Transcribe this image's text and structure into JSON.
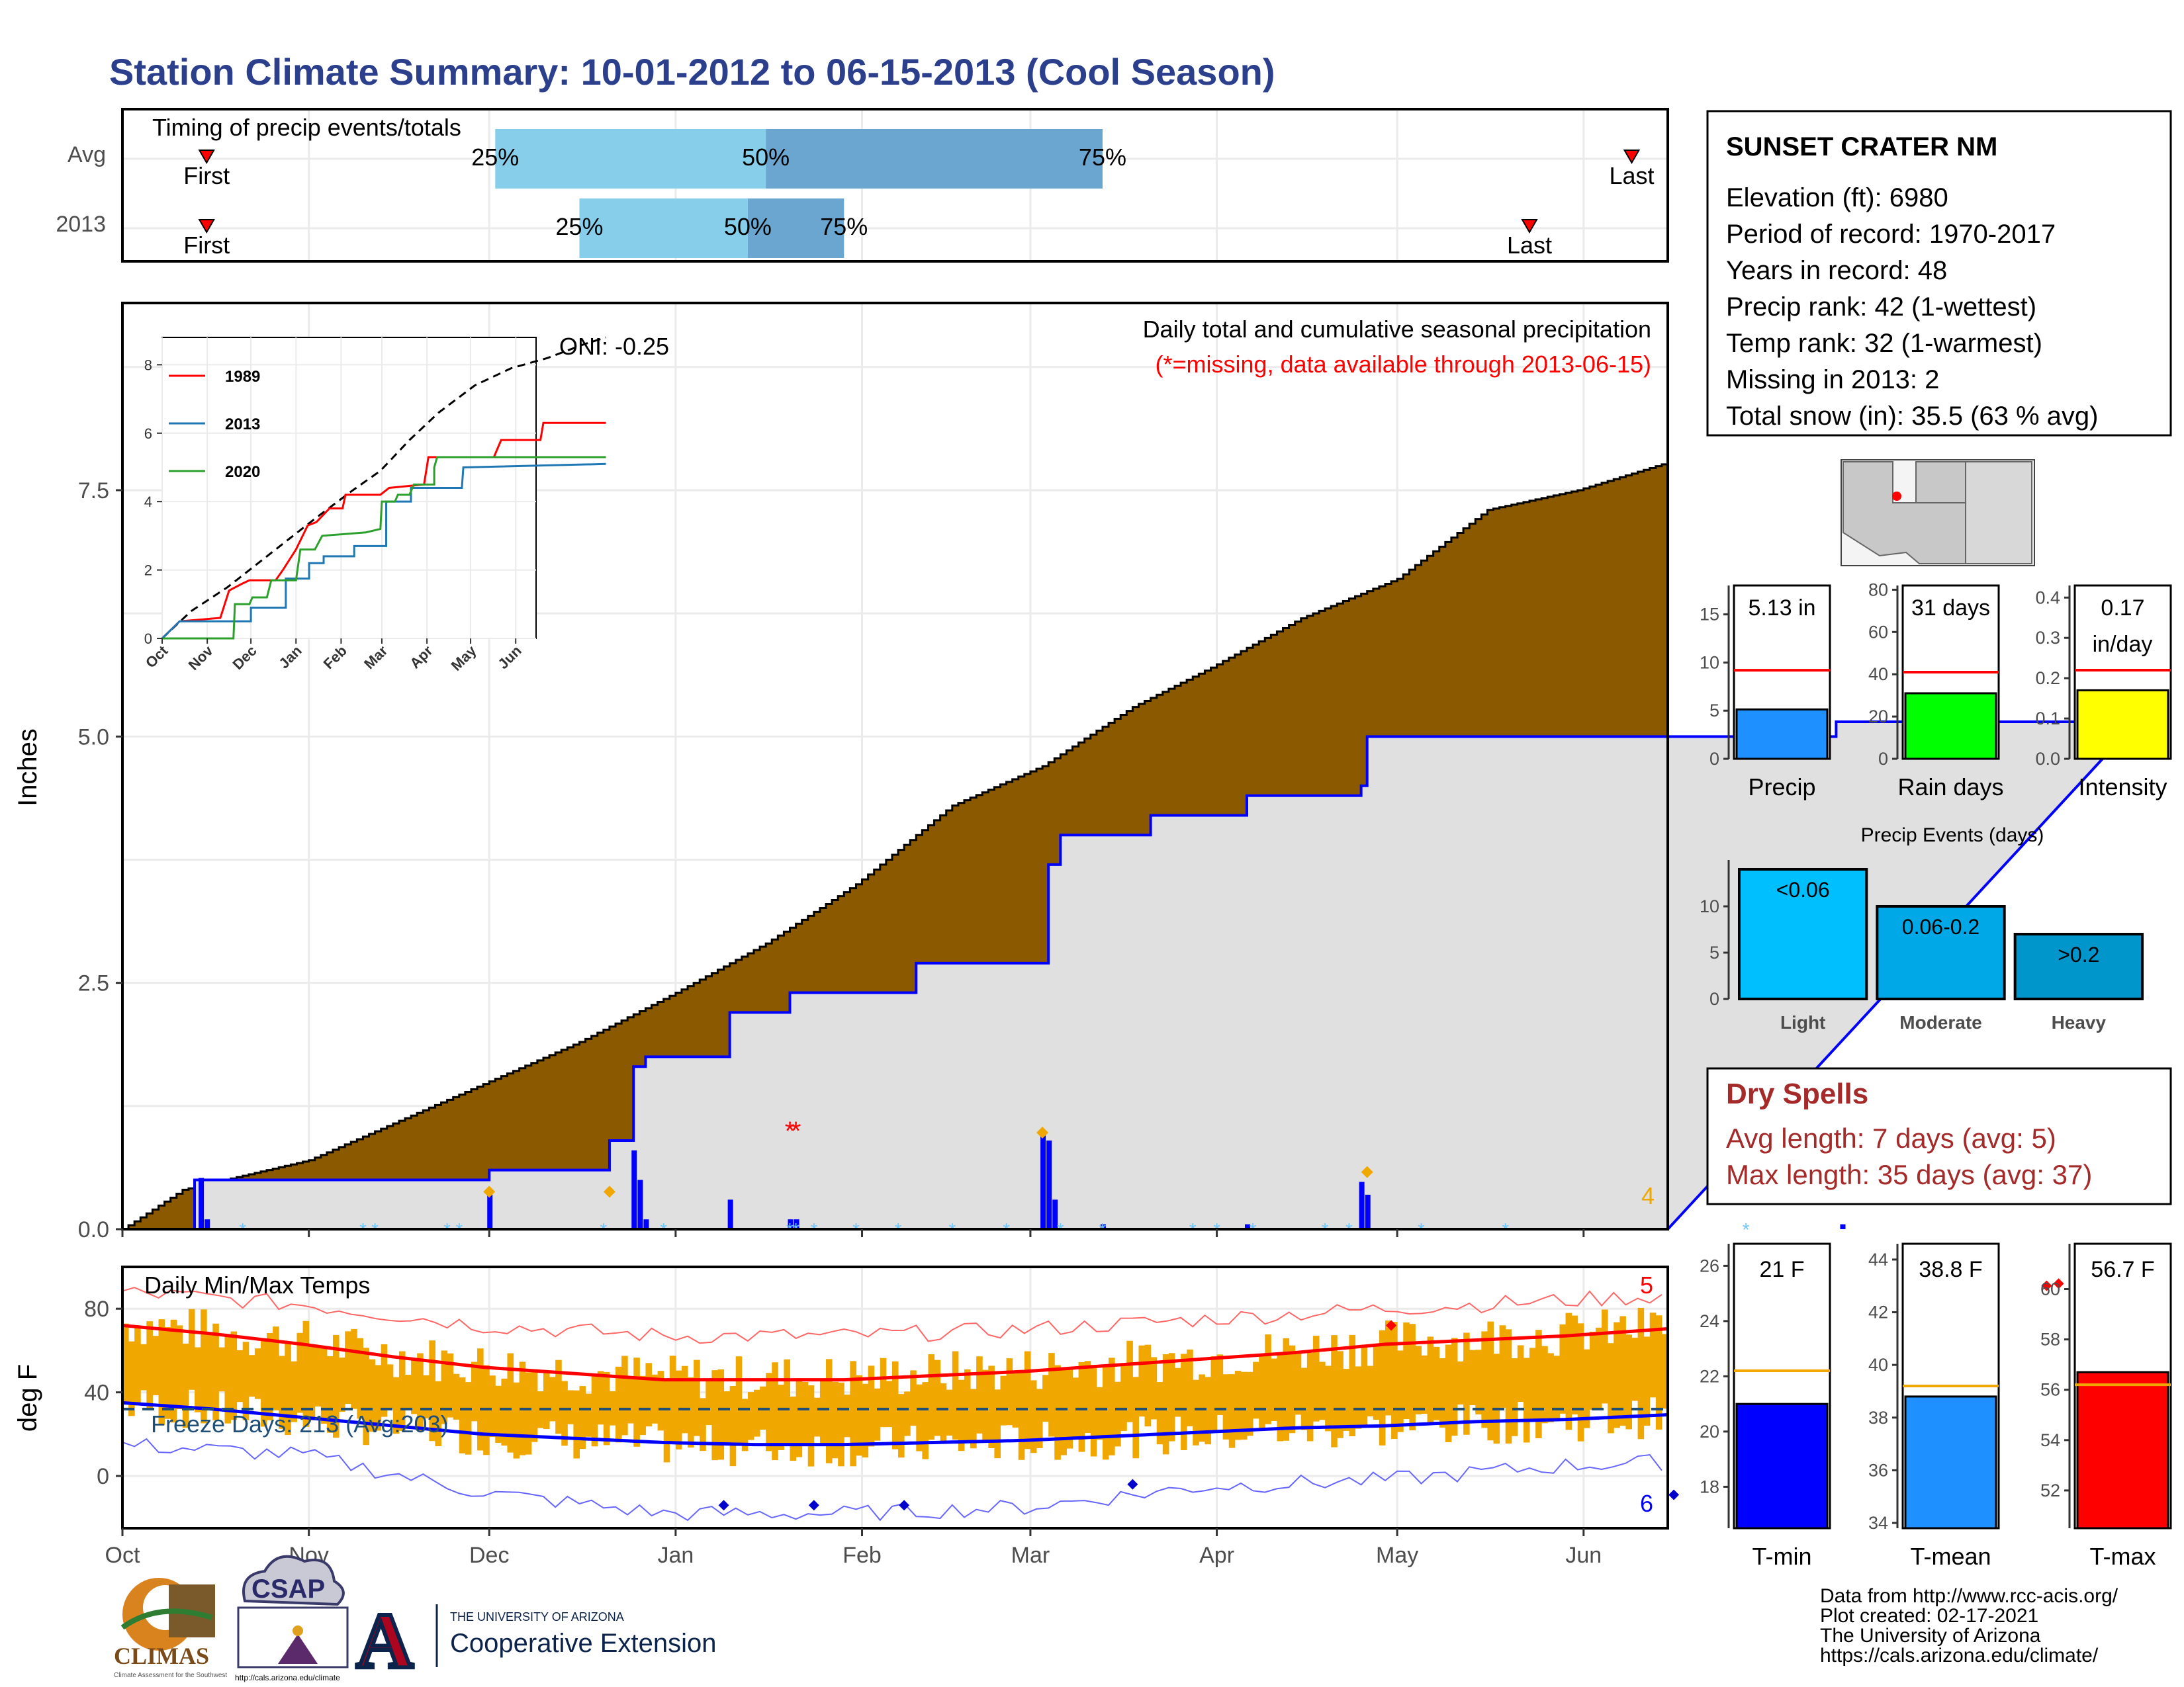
{
  "page": {
    "title": "Station Climate Summary: 10-01-2012 to 06-15-2013 (Cool Season)"
  },
  "months": [
    "Oct",
    "Nov",
    "Dec",
    "Jan",
    "Feb",
    "Mar",
    "Apr",
    "May",
    "Jun"
  ],
  "colors": {
    "brown": "#8b5a00",
    "grey": "#e0e0e0",
    "blue": "#0000ff",
    "orange": "#f0a800",
    "red": "#ff0000",
    "lightblue": "#87ceeb",
    "midblue": "#6aa6cf"
  },
  "chart_data": [
    {
      "type": "bar",
      "name": "timing",
      "title": "Timing of precip events/totals",
      "rows": [
        {
          "label": "Avg",
          "first": "First",
          "last": "Last",
          "p25": "25%",
          "p50": "50%",
          "p75": "75%",
          "first_day": 14,
          "last_day": 251,
          "p25_day": 62,
          "p50_day": 107,
          "p75_day": 163
        },
        {
          "label": "2013",
          "first": "First",
          "last": "Last",
          "p25": "25%",
          "p50": "50%",
          "p75": "75%",
          "first_day": 14,
          "last_day": 234,
          "p25_day": 76,
          "p50_day": 104,
          "p75_day": 120
        }
      ]
    },
    {
      "type": "area",
      "name": "precip",
      "title": "Daily total and cumulative seasonal precipitation",
      "subtitle": "(*=missing, data available through 2013-06-15)",
      "oni": "ONI: -0.25",
      "ylabel": "Inches",
      "yticks": [
        "0.0",
        "2.5",
        "5.0",
        "7.5"
      ],
      "ylim": [
        0,
        9.4
      ],
      "corner_count": "4",
      "avg_cumulative": [
        [
          0,
          0
        ],
        [
          10,
          0.4
        ],
        [
          31,
          0.7
        ],
        [
          61,
          1.5
        ],
        [
          76,
          1.9
        ],
        [
          92,
          2.4
        ],
        [
          107,
          2.9
        ],
        [
          122,
          3.5
        ],
        [
          138,
          4.3
        ],
        [
          153,
          4.7
        ],
        [
          168,
          5.3
        ],
        [
          181,
          5.7
        ],
        [
          196,
          6.2
        ],
        [
          212,
          6.6
        ],
        [
          227,
          7.3
        ],
        [
          242,
          7.5
        ],
        [
          258,
          7.8
        ],
        [
          273,
          8.0
        ],
        [
          288,
          8.3
        ],
        [
          303,
          8.5
        ],
        [
          318,
          8.6
        ],
        [
          335,
          8.6
        ]
      ],
      "cumulative_2013": [
        [
          0,
          0
        ],
        [
          12,
          0.0
        ],
        [
          12,
          0.5
        ],
        [
          61,
          0.5
        ],
        [
          61,
          0.6
        ],
        [
          81,
          0.6
        ],
        [
          81,
          0.9
        ],
        [
          85,
          0.9
        ],
        [
          85,
          1.65
        ],
        [
          87,
          1.65
        ],
        [
          87,
          1.75
        ],
        [
          101,
          1.75
        ],
        [
          101,
          2.2
        ],
        [
          111,
          2.2
        ],
        [
          111,
          2.4
        ],
        [
          132,
          2.4
        ],
        [
          132,
          2.7
        ],
        [
          154,
          2.7
        ],
        [
          154,
          3.7
        ],
        [
          156,
          3.7
        ],
        [
          156,
          4.0
        ],
        [
          171,
          4.0
        ],
        [
          171,
          4.2
        ],
        [
          187,
          4.2
        ],
        [
          187,
          4.4
        ],
        [
          206,
          4.4
        ],
        [
          206,
          4.5
        ],
        [
          207,
          4.5
        ],
        [
          207,
          5.0
        ],
        [
          285,
          5.0
        ],
        [
          285,
          5.15
        ],
        [
          335,
          5.15
        ]
      ],
      "daily_bars": [
        [
          13,
          0.52
        ],
        [
          14,
          0.1
        ],
        [
          61,
          0.35
        ],
        [
          85,
          0.8
        ],
        [
          86,
          0.5
        ],
        [
          87,
          0.1
        ],
        [
          101,
          0.3
        ],
        [
          111,
          0.1
        ],
        [
          112,
          0.1
        ],
        [
          153,
          0.95
        ],
        [
          154,
          0.9
        ],
        [
          155,
          0.3
        ],
        [
          163,
          0.05
        ],
        [
          187,
          0.05
        ],
        [
          206,
          0.48
        ],
        [
          207,
          0.35
        ],
        [
          286,
          0.05
        ]
      ],
      "markers_orange": [
        [
          61,
          0.38
        ],
        [
          81,
          0.38
        ],
        [
          153,
          0.98
        ],
        [
          207,
          0.58
        ]
      ],
      "markers_missing": [
        [
          111,
          1.0
        ],
        [
          112,
          1.0
        ]
      ],
      "inset": {
        "type": "line",
        "yticks": [
          "0",
          "2",
          "4",
          "6",
          "8"
        ],
        "ylim": [
          0,
          8.8
        ],
        "months": [
          "Oct",
          "Nov",
          "Dec",
          "Jan",
          "Feb",
          "Mar",
          "Apr",
          "May",
          "Jun"
        ],
        "series": [
          {
            "name": "1989",
            "color": "#ff0000",
            "values": [
              [
                0,
                0
              ],
              [
                12,
                0.5
              ],
              [
                40,
                0.6
              ],
              [
                46,
                1.4
              ],
              [
                55,
                1.6
              ],
              [
                60,
                1.7
              ],
              [
                78,
                1.7
              ],
              [
                83,
                2.0
              ],
              [
                92,
                2.6
              ],
              [
                100,
                3.3
              ],
              [
                106,
                3.4
              ],
              [
                115,
                3.8
              ],
              [
                124,
                3.8
              ],
              [
                126,
                4.2
              ],
              [
                150,
                4.2
              ],
              [
                156,
                4.4
              ],
              [
                180,
                4.5
              ],
              [
                183,
                5.3
              ],
              [
                228,
                5.3
              ],
              [
                233,
                5.8
              ],
              [
                260,
                5.8
              ],
              [
                262,
                6.3
              ],
              [
                305,
                6.3
              ]
            ]
          },
          {
            "name": "2013",
            "color": "#1f77b4",
            "values": [
              [
                0,
                0
              ],
              [
                12,
                0.5
              ],
              [
                61,
                0.5
              ],
              [
                61,
                0.9
              ],
              [
                85,
                0.9
              ],
              [
                85,
                1.75
              ],
              [
                101,
                1.75
              ],
              [
                101,
                2.2
              ],
              [
                111,
                2.2
              ],
              [
                111,
                2.4
              ],
              [
                132,
                2.4
              ],
              [
                132,
                2.7
              ],
              [
                154,
                2.7
              ],
              [
                154,
                4.0
              ],
              [
                171,
                4.0
              ],
              [
                171,
                4.4
              ],
              [
                206,
                4.4
              ],
              [
                207,
                5.0
              ],
              [
                305,
                5.1
              ]
            ]
          },
          {
            "name": "2020",
            "color": "#2ca02c",
            "values": [
              [
                0,
                0
              ],
              [
                49,
                0
              ],
              [
                50,
                1.0
              ],
              [
                60,
                1.0
              ],
              [
                62,
                1.2
              ],
              [
                72,
                1.2
              ],
              [
                75,
                1.7
              ],
              [
                92,
                1.7
              ],
              [
                95,
                2.6
              ],
              [
                105,
                2.6
              ],
              [
                110,
                3.0
              ],
              [
                140,
                3.1
              ],
              [
                150,
                3.2
              ],
              [
                151,
                4.0
              ],
              [
                160,
                4.0
              ],
              [
                162,
                4.2
              ],
              [
                170,
                4.2
              ],
              [
                173,
                4.5
              ],
              [
                187,
                4.5
              ],
              [
                187,
                5.0
              ],
              [
                189,
                5.3
              ],
              [
                305,
                5.3
              ]
            ]
          }
        ],
        "avg_dashed": [
          [
            0,
            0
          ],
          [
            20,
            0.8
          ],
          [
            45,
            1.5
          ],
          [
            75,
            2.5
          ],
          [
            105,
            3.5
          ],
          [
            130,
            4.3
          ],
          [
            150,
            4.9
          ],
          [
            170,
            5.8
          ],
          [
            190,
            6.6
          ],
          [
            215,
            7.4
          ],
          [
            240,
            7.9
          ],
          [
            265,
            8.2
          ],
          [
            290,
            8.6
          ],
          [
            305,
            8.8
          ]
        ]
      }
    },
    {
      "type": "bar",
      "name": "temps",
      "title": "Daily Min/Max Temps",
      "ylabel": "deg F",
      "yticks": [
        "0",
        "40",
        "80"
      ],
      "ylim": [
        -25,
        100
      ],
      "freeze_label": "Freeze Days: 213 (Avg:203)",
      "freeze_line": 32,
      "count_high": "5",
      "count_low": "6",
      "avg_max": [
        [
          0,
          72
        ],
        [
          15,
          68
        ],
        [
          30,
          63
        ],
        [
          45,
          57
        ],
        [
          60,
          52
        ],
        [
          75,
          49
        ],
        [
          90,
          46
        ],
        [
          105,
          46
        ],
        [
          120,
          46
        ],
        [
          135,
          48
        ],
        [
          150,
          50
        ],
        [
          165,
          53
        ],
        [
          180,
          56
        ],
        [
          195,
          59
        ],
        [
          210,
          63
        ],
        [
          225,
          65
        ],
        [
          240,
          67
        ],
        [
          255,
          70
        ],
        [
          270,
          73
        ],
        [
          285,
          76
        ],
        [
          300,
          78
        ],
        [
          315,
          80
        ],
        [
          325,
          81
        ]
      ],
      "avg_min": [
        [
          0,
          35
        ],
        [
          15,
          32
        ],
        [
          30,
          28
        ],
        [
          45,
          24
        ],
        [
          60,
          20
        ],
        [
          75,
          18
        ],
        [
          90,
          16
        ],
        [
          105,
          15
        ],
        [
          120,
          15
        ],
        [
          135,
          16
        ],
        [
          150,
          17
        ],
        [
          165,
          19
        ],
        [
          180,
          21
        ],
        [
          195,
          23
        ],
        [
          210,
          24
        ],
        [
          225,
          26
        ],
        [
          240,
          27
        ],
        [
          255,
          29
        ],
        [
          270,
          31
        ],
        [
          285,
          33
        ],
        [
          300,
          36
        ],
        [
          315,
          38
        ],
        [
          325,
          40
        ]
      ],
      "record_high": [
        [
          0,
          88
        ],
        [
          30,
          82
        ],
        [
          60,
          72
        ],
        [
          90,
          67
        ],
        [
          120,
          67
        ],
        [
          150,
          70
        ],
        [
          180,
          75
        ],
        [
          210,
          80
        ],
        [
          240,
          84
        ],
        [
          270,
          88
        ],
        [
          300,
          92
        ],
        [
          325,
          95
        ]
      ],
      "record_low": [
        [
          0,
          15
        ],
        [
          30,
          10
        ],
        [
          60,
          -8
        ],
        [
          90,
          -18
        ],
        [
          120,
          -18
        ],
        [
          150,
          -15
        ],
        [
          180,
          -5
        ],
        [
          210,
          -2
        ],
        [
          240,
          5
        ],
        [
          270,
          8
        ],
        [
          300,
          15
        ],
        [
          325,
          22
        ]
      ],
      "markers_high": [
        [
          211,
          72
        ],
        [
          270,
          85
        ],
        [
          272,
          85
        ],
        [
          320,
          91
        ],
        [
          322,
          92
        ]
      ],
      "markers_low": [
        [
          100,
          -14
        ],
        [
          115,
          -14
        ],
        [
          130,
          -14
        ],
        [
          168,
          -4
        ],
        [
          258,
          -9
        ],
        [
          280,
          -6
        ]
      ]
    },
    {
      "type": "bar",
      "name": "precip_summary",
      "categories": [
        "Precip",
        "Rain days",
        "Intensity"
      ],
      "labels": [
        "5.13 in",
        "31 days",
        "0.17"
      ],
      "label_extra": "in/day",
      "values": [
        5.13,
        31,
        0.17
      ],
      "avg": [
        9.2,
        41,
        0.22
      ],
      "ylims": [
        [
          0,
          18
        ],
        [
          0,
          82
        ],
        [
          0,
          0.43
        ]
      ],
      "yticks": [
        [
          "0",
          "5",
          "10",
          "15"
        ],
        [
          "0",
          "20",
          "40",
          "60",
          "80"
        ],
        [
          "0.0",
          "0.1",
          "0.2",
          "0.3",
          "0.4"
        ]
      ],
      "colors": [
        "#1e90ff",
        "#00ff00",
        "#ffff00"
      ]
    },
    {
      "type": "bar",
      "name": "precip_events",
      "title": "Precip Events (days)",
      "categories": [
        "Light",
        "Moderate",
        "Heavy"
      ],
      "labels": [
        "<0.06",
        "0.06-0.2",
        ">0.2"
      ],
      "values": [
        14,
        10,
        7
      ],
      "yticks": [
        "0",
        "5",
        "10"
      ],
      "ylim": [
        0,
        15
      ],
      "colors": [
        "#00bfff",
        "#00a8e8",
        "#0096cc"
      ]
    },
    {
      "type": "bar",
      "name": "temp_summary",
      "categories": [
        "T-min",
        "T-mean",
        "T-max"
      ],
      "labels": [
        "21 F",
        "38.8 F",
        "56.7 F"
      ],
      "values": [
        21,
        38.8,
        56.7
      ],
      "avg": [
        22.2,
        39.2,
        56.2
      ],
      "ylims": [
        [
          16.5,
          26.8
        ],
        [
          33.8,
          44.6
        ],
        [
          50.5,
          61.8
        ]
      ],
      "yticks": [
        [
          "18",
          "20",
          "22",
          "24",
          "26"
        ],
        [
          "34",
          "36",
          "38",
          "40",
          "42",
          "44"
        ],
        [
          "52",
          "54",
          "56",
          "58",
          "60"
        ]
      ],
      "colors": [
        "#0000ff",
        "#1e90ff",
        "#ff0000"
      ]
    }
  ],
  "station": {
    "name": "SUNSET CRATER NM",
    "lines": [
      "Elevation (ft): 6980",
      "Period of record: 1970-2017",
      "Years in record: 48",
      "Precip rank: 42 (1-wettest)",
      "Temp rank: 32 (1-warmest)",
      "Missing in 2013: 2",
      "Total snow (in): 35.5 (63 % avg)"
    ]
  },
  "dry_spells": {
    "title": "Dry Spells",
    "lines": [
      "Avg length: 7 days (avg: 5)",
      "Max length: 35 days (avg: 37)"
    ]
  },
  "footer": {
    "lines": [
      "Data from http://www.rcc-acis.org/",
      "Plot created: 02-17-2021",
      "The University of Arizona",
      "https://cals.arizona.edu/climate/"
    ],
    "logos": {
      "climas": "CLIMAS",
      "climas_sub": "Climate Assessment for the Southwest",
      "csap": "CSAP",
      "csap_url": "http://cals.arizona.edu/climate",
      "ua_letter": "A",
      "ua_small": "THE UNIVERSITY OF ARIZONA",
      "ua_big": "Cooperative Extension"
    }
  }
}
